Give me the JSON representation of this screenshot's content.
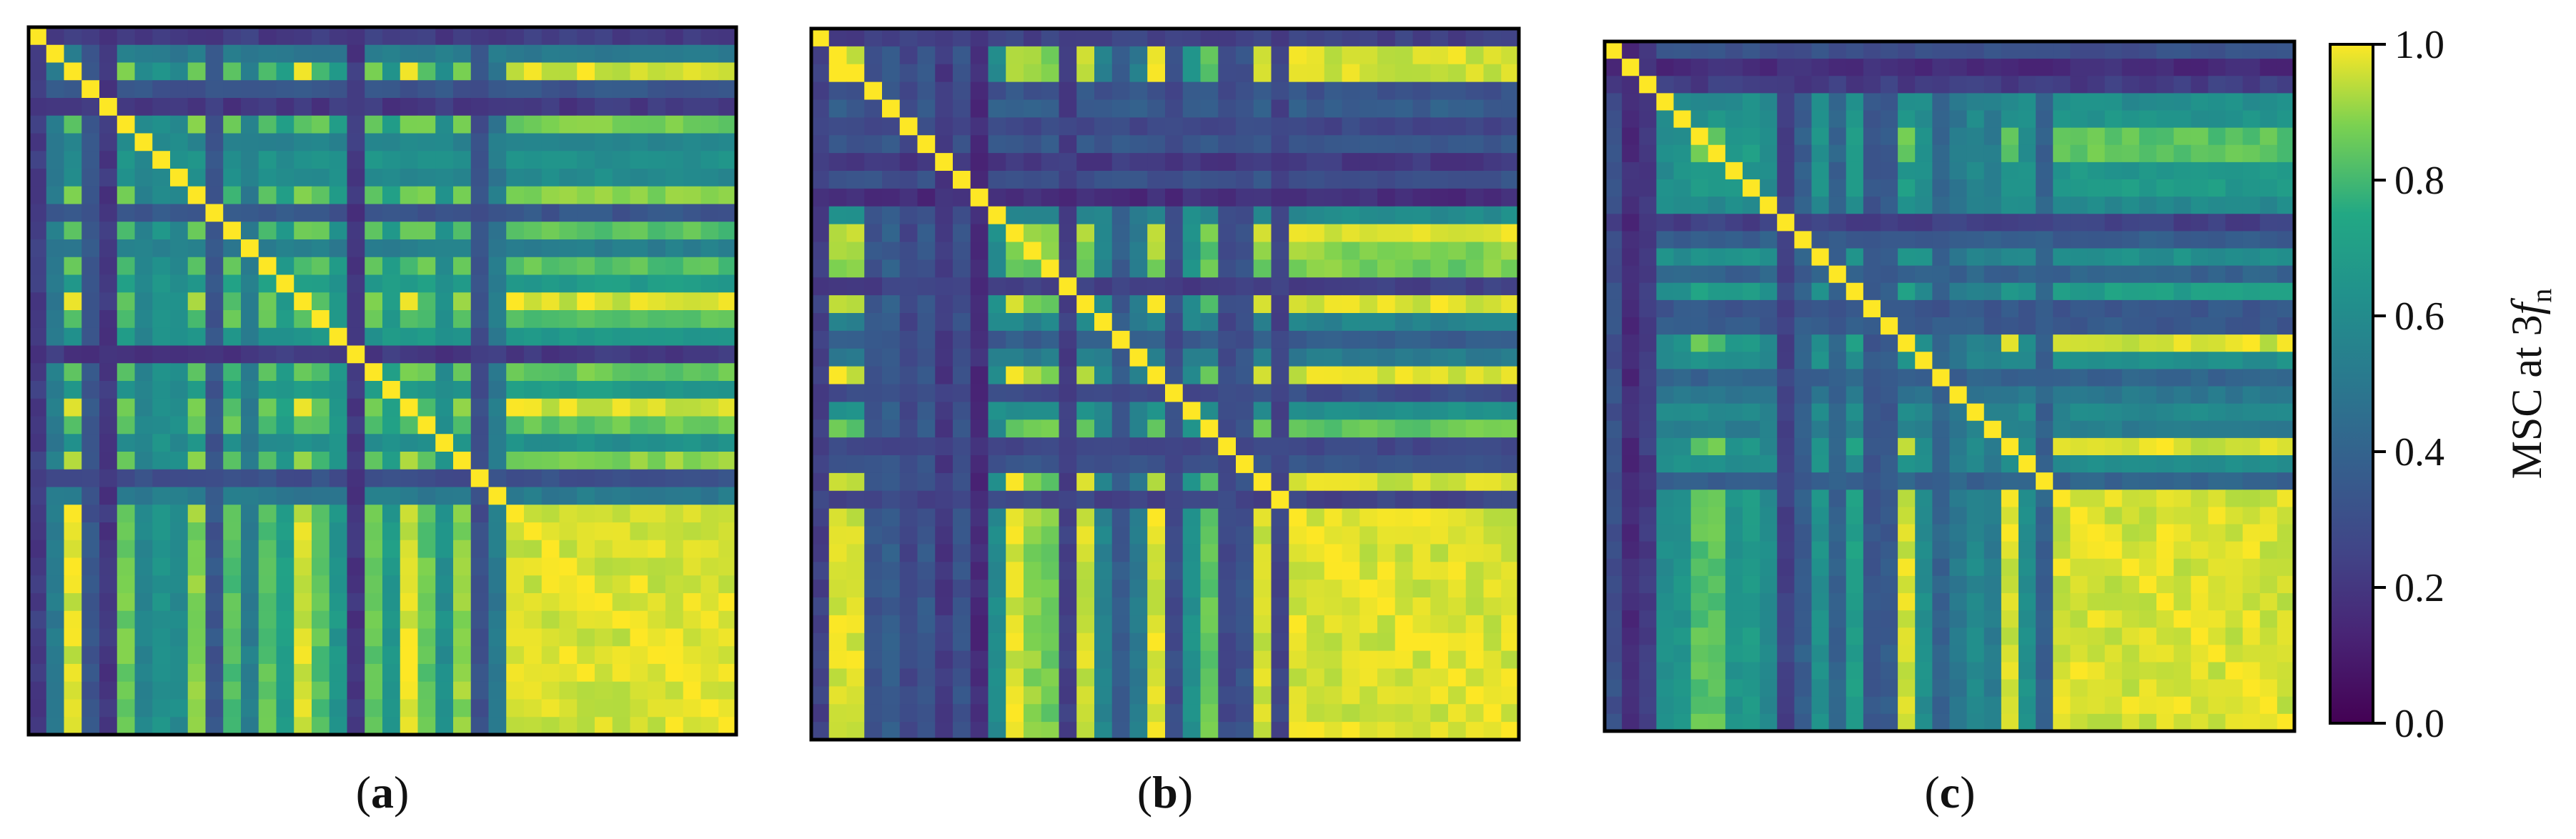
{
  "chart_data": [
    {
      "type": "heatmap",
      "panel_label": "a",
      "matrix_size": 40,
      "colormap": "viridis",
      "value_range": [
        0,
        1
      ],
      "uniform_block_start": 27,
      "structure_note": "dense correlation matrix; values read from colour",
      "xlabel": "",
      "ylabel": ""
    },
    {
      "type": "heatmap",
      "panel_label": "b",
      "matrix_size": 40,
      "colormap": "viridis",
      "value_range": [
        0,
        1
      ],
      "uniform_block_start": 27,
      "xlabel": "",
      "ylabel": ""
    },
    {
      "type": "heatmap",
      "panel_label": "c",
      "matrix_size": 40,
      "colormap": "viridis",
      "value_range": [
        0,
        1
      ],
      "uniform_block_start": 26,
      "xlabel": "",
      "ylabel": ""
    }
  ],
  "colorbar": {
    "label_main": "MSC at 3",
    "label_italic": "f",
    "label_sub": "n",
    "ticks": [
      "0.0",
      "0.2",
      "0.4",
      "0.6",
      "0.8",
      "1.0"
    ],
    "tick_values": [
      0.0,
      0.2,
      0.4,
      0.6,
      0.8,
      1.0
    ],
    "range": [
      0,
      1
    ]
  },
  "colors": {
    "viridis_low": "#440154",
    "viridis_mid": "#21918c",
    "viridis_high": "#fde725",
    "frame": "#000000"
  }
}
